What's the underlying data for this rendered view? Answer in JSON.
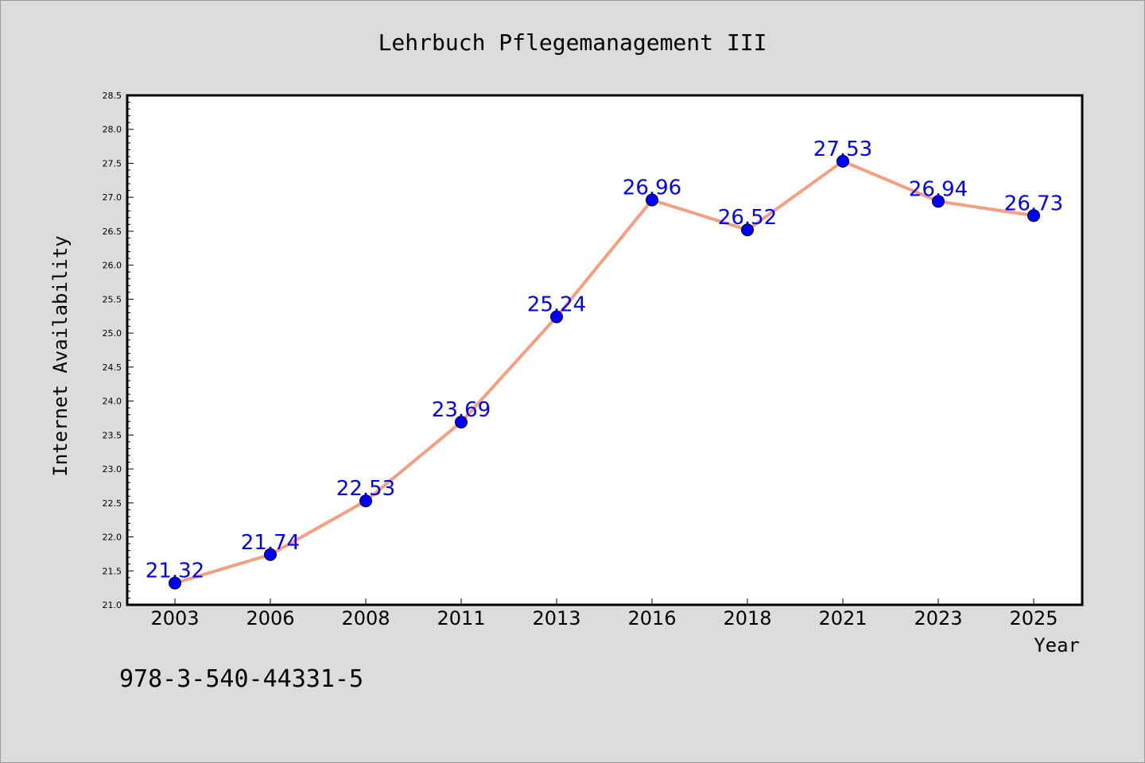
{
  "chart_data": {
    "type": "line",
    "title": "Lehrbuch Pflegemanagement III",
    "xlabel": "Year",
    "ylabel": "Internet Availability",
    "categories": [
      "2003",
      "2006",
      "2008",
      "2011",
      "2013",
      "2016",
      "2018",
      "2021",
      "2023",
      "2025"
    ],
    "series": [
      {
        "values": [
          21.32,
          21.74,
          22.53,
          23.69,
          25.24,
          26.96,
          26.52,
          27.53,
          26.94,
          26.73
        ]
      }
    ],
    "data_labels": [
      "21.32",
      "21.74",
      "22.53",
      "23.69",
      "25.24",
      "26.96",
      "26.52",
      "27.53",
      "26.94",
      "26.73"
    ],
    "ylim": [
      21.0,
      28.5
    ],
    "yticks": [
      "21.0",
      "21.5",
      "22.0",
      "22.5",
      "23.0",
      "23.5",
      "24.0",
      "24.5",
      "25.0",
      "25.5",
      "26.0",
      "26.5",
      "27.0",
      "27.5",
      "28.0",
      "28.5"
    ],
    "grid": false,
    "colors": {
      "line": "#f4a080",
      "marker": "#0000ff",
      "label": "#0000ff",
      "background": "#dcdcdc",
      "plot_area": "#ffffff"
    }
  },
  "footer": {
    "isbn": "978-3-540-44331-5"
  }
}
